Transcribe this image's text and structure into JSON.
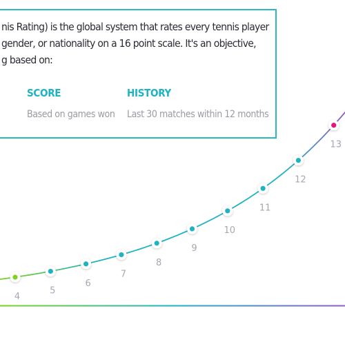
{
  "intro_lines": [
    "nis Rating) is the global system that rates every tennis player",
    "gender, or nationality on a 16 point scale.  It's an objective,",
    "g based on:"
  ],
  "columns": [
    {
      "title": "SCORE",
      "desc": "Based on games won"
    },
    {
      "title": "HISTORY",
      "desc": "Last 30 matches within 12 months"
    }
  ],
  "chart_data": {
    "type": "line",
    "x": [
      4,
      5,
      6,
      7,
      8,
      9,
      10,
      11,
      12,
      13
    ],
    "points": [
      {
        "label": "4",
        "value": 4,
        "color": "#7ed321"
      },
      {
        "label": "5",
        "value": 5,
        "color": "#1fb3c2"
      },
      {
        "label": "6",
        "value": 6,
        "color": "#1fb3c2"
      },
      {
        "label": "7",
        "value": 7,
        "color": "#1fb3c2"
      },
      {
        "label": "8",
        "value": 8,
        "color": "#1fb3c2"
      },
      {
        "label": "9",
        "value": 9,
        "color": "#1fb3c2"
      },
      {
        "label": "10",
        "value": 10,
        "color": "#1fb3c2"
      },
      {
        "label": "11",
        "value": 11,
        "color": "#1fb3c2"
      },
      {
        "label": "12",
        "value": 12,
        "color": "#1fb3c2"
      },
      {
        "label": "13",
        "value": 13,
        "color": "#e6147e"
      }
    ],
    "gradient": [
      "#7ed321",
      "#1fb3c2",
      "#8e5fc4"
    ]
  }
}
